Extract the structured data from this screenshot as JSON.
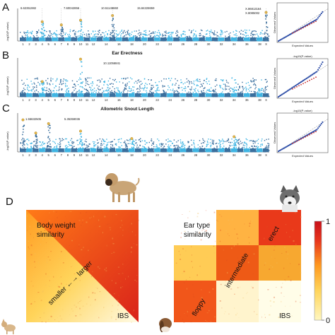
{
  "panels": {
    "A": {
      "label": "A",
      "title": "",
      "pos_labels": [
        "6.62351982",
        "7.60042856",
        "10.51149860",
        "15.84228659",
        "X.86813164",
        "X.8085002"
      ]
    },
    "B": {
      "label": "B",
      "title": "Ear Erectness",
      "pos_labels": [
        "10.11056841"
      ]
    },
    "C": {
      "label": "C",
      "title": "Allometric Snout Length",
      "pos_labels": [
        "1.55632505",
        "5.35359036"
      ]
    },
    "D": {
      "label": "D"
    }
  },
  "manhattan": {
    "ylabel": "-log10(P-value)",
    "chromosomes": [
      "1",
      "2",
      "3",
      "4",
      "5",
      "6",
      "7",
      "8",
      "9",
      "10",
      "11",
      "12",
      "13",
      "14",
      "15",
      "16",
      "17",
      "18",
      "19",
      "20",
      "21",
      "22",
      "23",
      "24",
      "25",
      "26",
      "27",
      "28",
      "29",
      "30",
      "31",
      "32",
      "33",
      "34",
      "35",
      "36",
      "37",
      "38",
      "X"
    ],
    "axis_ticks": [
      "1",
      "2",
      "3",
      "4",
      "5",
      "6",
      "7",
      "8",
      "9",
      "10",
      "11",
      "12",
      "14",
      "16",
      "18",
      "20",
      "22",
      "24",
      "26",
      "28",
      "30",
      "32",
      "34",
      "36",
      "38",
      "X"
    ],
    "colors": {
      "odd": "#3a6f9e",
      "even": "#3fb5e3",
      "highlight": "#e8b84a"
    }
  },
  "qq": {
    "xlabel": "Expected Values",
    "ylabel": "Observed Values",
    "legend": "-log10(P-value)"
  },
  "heatmaps": [
    {
      "title_lines": [
        "Body weight",
        "similarity"
      ],
      "diagonal_text": "smaller ←→ larger",
      "corner_label": "IBS"
    },
    {
      "title_lines": [
        "Ear type",
        "similarity"
      ],
      "block_labels": [
        "floppy",
        "intermediate",
        "erect"
      ],
      "corner_label": "IBS"
    }
  ],
  "colorbar": {
    "min": "0",
    "max": "1",
    "colors": [
      "#fff7c0",
      "#ffd45a",
      "#ff9a20",
      "#e8361c",
      "#c8101a"
    ]
  },
  "dogs": [
    "mastiff",
    "husky",
    "chihuahua",
    "hound"
  ]
}
